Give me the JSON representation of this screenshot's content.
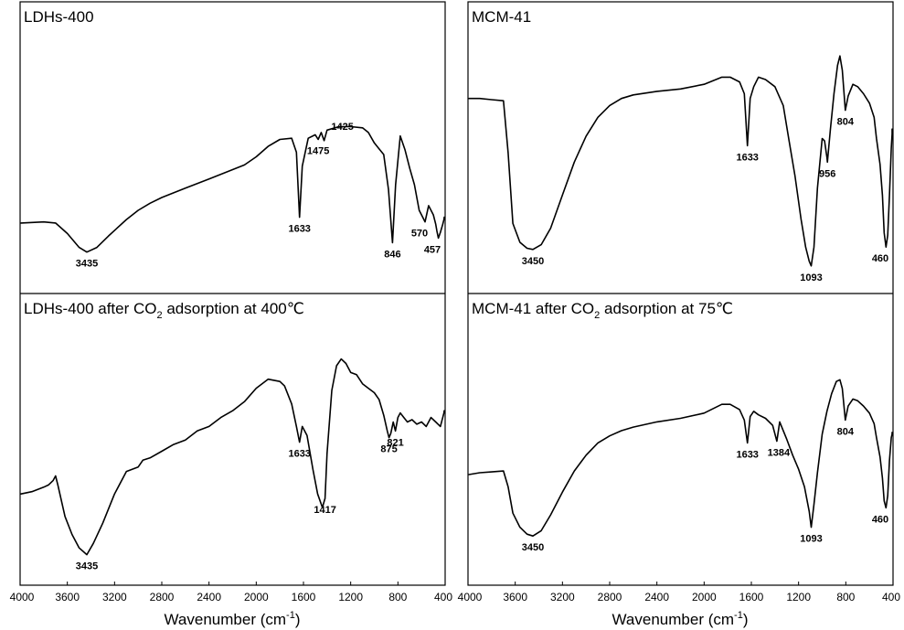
{
  "figure": {
    "xlabel": "Wavenumber (cm",
    "xlabel_sup": "-1",
    "xlabel_close": ")",
    "x_tick_labels": [
      "4000",
      "3600",
      "3200",
      "2800",
      "2400",
      "2000",
      "1600",
      "1200",
      "800",
      "400"
    ]
  },
  "chart_data": [
    {
      "type": "line",
      "title": "LDHs-400",
      "xlabel": "Wavenumber (cm-1)",
      "xlim": [
        4000,
        400
      ],
      "x_reversed": true,
      "y_relative": true,
      "ylim": [
        0,
        100
      ],
      "x": [
        4000,
        3800,
        3700,
        3600,
        3500,
        3435,
        3350,
        3250,
        3100,
        3000,
        2900,
        2800,
        2600,
        2400,
        2200,
        2100,
        2000,
        1900,
        1800,
        1700,
        1660,
        1633,
        1610,
        1560,
        1500,
        1475,
        1450,
        1425,
        1400,
        1300,
        1200,
        1100,
        1050,
        1000,
        960,
        920,
        880,
        846,
        820,
        780,
        740,
        700,
        660,
        620,
        590,
        570,
        540,
        500,
        480,
        470,
        457,
        440,
        420,
        410,
        400
      ],
      "y": [
        20.5,
        21,
        20.5,
        16,
        10,
        8,
        10,
        15,
        22,
        26,
        29,
        31.5,
        35.5,
        39.5,
        43.5,
        45.5,
        49,
        53.5,
        56.5,
        57,
        51,
        23,
        45,
        57,
        58.5,
        56.5,
        59.5,
        56,
        60.5,
        62,
        62,
        61.5,
        59.5,
        55,
        52.5,
        50,
        35,
        12,
        37,
        58,
        52,
        44,
        37,
        26,
        23,
        21,
        28,
        24,
        20,
        17,
        14,
        16.5,
        20,
        22,
        23
      ],
      "peak_labels": [
        {
          "wavenumber": 3435,
          "label": "3435"
        },
        {
          "wavenumber": 1633,
          "label": "1633"
        },
        {
          "wavenumber": 1425,
          "label": "1425"
        },
        {
          "wavenumber": 1475,
          "label": "1475"
        },
        {
          "wavenumber": 846,
          "label": "846"
        },
        {
          "wavenumber": 570,
          "label": "570"
        },
        {
          "wavenumber": 457,
          "label": "457"
        }
      ]
    },
    {
      "type": "line",
      "title": "MCM-41",
      "xlabel": "Wavenumber (cm-1)",
      "xlim": [
        4000,
        400
      ],
      "x_reversed": true,
      "y_relative": true,
      "ylim": [
        0,
        100
      ],
      "x": [
        4000,
        3900,
        3800,
        3700,
        3660,
        3620,
        3560,
        3500,
        3450,
        3380,
        3300,
        3200,
        3100,
        3000,
        2900,
        2800,
        2700,
        2600,
        2400,
        2200,
        2000,
        1850,
        1780,
        1700,
        1660,
        1633,
        1610,
        1580,
        1540,
        1480,
        1400,
        1330,
        1280,
        1230,
        1180,
        1140,
        1110,
        1093,
        1070,
        1040,
        1000,
        980,
        960,
        956,
        930,
        900,
        870,
        850,
        830,
        804,
        780,
        740,
        700,
        650,
        600,
        560,
        540,
        510,
        490,
        475,
        460,
        445,
        430,
        415,
        405,
        400
      ],
      "y": [
        73,
        73,
        72.5,
        72,
        50,
        20,
        12,
        9.5,
        9,
        11,
        18,
        32,
        46,
        57,
        65,
        70,
        73,
        74.5,
        76,
        77,
        79,
        82,
        82,
        80,
        75,
        53,
        73,
        78,
        82,
        81,
        78,
        70,
        55,
        40,
        22,
        10,
        4,
        2,
        10,
        35,
        56,
        55,
        48,
        46,
        60,
        75,
        87,
        91,
        85,
        68,
        74,
        79,
        78,
        75,
        71,
        65,
        56,
        45,
        32,
        16,
        10,
        15,
        32,
        52,
        58,
        60
      ],
      "peak_labels": [
        {
          "wavenumber": 3450,
          "label": "3450"
        },
        {
          "wavenumber": 1633,
          "label": "1633"
        },
        {
          "wavenumber": 1093,
          "label": "1093"
        },
        {
          "wavenumber": 956,
          "label": "956"
        },
        {
          "wavenumber": 804,
          "label": "804"
        },
        {
          "wavenumber": 460,
          "label": "460"
        }
      ]
    },
    {
      "type": "line",
      "title": "LDHs-400 after CO2 adsorption at 400℃",
      "title_parts": {
        "before": "LDHs-400 after CO",
        "sub": "2",
        "after": " adsorption at 400℃"
      },
      "xlabel": "Wavenumber (cm-1)",
      "xlim": [
        4000,
        400
      ],
      "x_reversed": true,
      "y_relative": true,
      "ylim": [
        0,
        100
      ],
      "x": [
        4000,
        3900,
        3800,
        3760,
        3720,
        3700,
        3680,
        3620,
        3560,
        3500,
        3435,
        3380,
        3300,
        3200,
        3100,
        3000,
        2960,
        2900,
        2800,
        2700,
        2600,
        2500,
        2400,
        2300,
        2200,
        2100,
        2000,
        1900,
        1800,
        1760,
        1700,
        1660,
        1633,
        1610,
        1570,
        1520,
        1480,
        1440,
        1417,
        1400,
        1360,
        1320,
        1280,
        1240,
        1200,
        1150,
        1100,
        1050,
        1000,
        960,
        920,
        890,
        875,
        860,
        840,
        821,
        800,
        780,
        750,
        720,
        680,
        640,
        600,
        560,
        520,
        480,
        440,
        410,
        400
      ],
      "y": [
        30,
        31,
        33,
        34,
        36,
        38,
        34,
        20,
        12,
        6,
        3,
        8,
        17,
        30,
        40,
        42,
        45,
        46,
        49,
        52,
        54,
        58,
        60,
        64,
        67,
        71,
        77,
        81,
        80,
        78,
        70,
        60,
        53,
        60,
        56,
        41,
        30,
        24,
        28,
        48,
        76,
        87,
        90,
        88,
        84,
        83,
        79,
        77,
        75,
        72,
        65,
        58,
        55,
        57,
        62,
        58,
        64,
        66,
        64,
        62,
        63,
        61,
        62,
        60,
        64,
        62,
        60,
        66,
        67
      ],
      "peak_labels": [
        {
          "wavenumber": 3435,
          "label": "3435"
        },
        {
          "wavenumber": 1633,
          "label": "1633"
        },
        {
          "wavenumber": 1417,
          "label": "1417"
        },
        {
          "wavenumber": 875,
          "label": "875"
        },
        {
          "wavenumber": 821,
          "label": "821"
        }
      ]
    },
    {
      "type": "line",
      "title": "MCM-41 after CO2 adsorption at 75℃",
      "title_parts": {
        "before": "MCM-41 after CO",
        "sub": "2",
        "after": " adsorption at 75℃"
      },
      "xlabel": "Wavenumber (cm-1)",
      "xlim": [
        4000,
        400
      ],
      "x_reversed": true,
      "y_relative": true,
      "ylim": [
        0,
        100
      ],
      "x": [
        4000,
        3900,
        3800,
        3700,
        3660,
        3620,
        3560,
        3500,
        3450,
        3380,
        3300,
        3200,
        3100,
        3000,
        2900,
        2800,
        2700,
        2600,
        2400,
        2200,
        2000,
        1850,
        1780,
        1700,
        1660,
        1633,
        1610,
        1580,
        1540,
        1480,
        1420,
        1384,
        1360,
        1300,
        1250,
        1200,
        1150,
        1110,
        1093,
        1070,
        1040,
        1000,
        960,
        920,
        880,
        850,
        830,
        804,
        780,
        740,
        700,
        650,
        600,
        560,
        540,
        510,
        490,
        475,
        460,
        445,
        430,
        415,
        405,
        400
      ],
      "y": [
        37,
        38,
        38.5,
        39,
        30,
        15,
        7,
        3,
        2,
        5,
        14,
        27,
        39,
        48,
        55,
        59,
        62,
        64,
        67,
        69,
        72,
        77,
        77,
        74,
        68,
        55,
        70,
        73,
        71,
        69,
        65,
        56,
        67,
        57,
        48,
        40,
        30,
        16,
        7,
        20,
        38,
        60,
        73,
        83,
        90,
        91,
        86,
        68,
        76,
        80,
        79,
        76,
        72,
        66,
        58,
        47,
        35,
        22,
        18,
        25,
        45,
        58,
        60,
        61
      ],
      "peak_labels": [
        {
          "wavenumber": 3450,
          "label": "3450"
        },
        {
          "wavenumber": 1633,
          "label": "1633"
        },
        {
          "wavenumber": 1384,
          "label": "1384"
        },
        {
          "wavenumber": 1093,
          "label": "1093"
        },
        {
          "wavenumber": 804,
          "label": "804"
        },
        {
          "wavenumber": 460,
          "label": "460"
        }
      ]
    }
  ]
}
